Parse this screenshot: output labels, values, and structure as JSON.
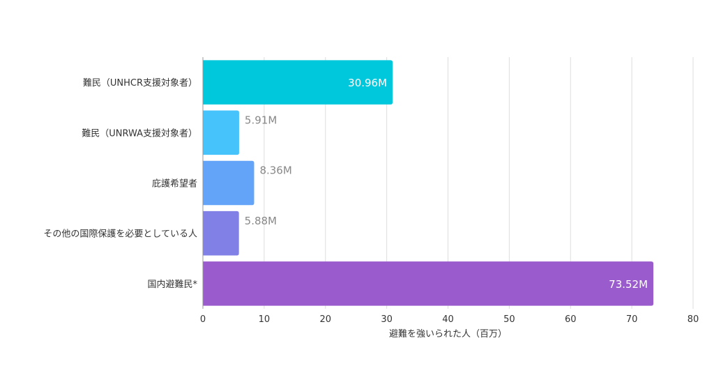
{
  "chart_data": {
    "type": "bar",
    "orientation": "horizontal",
    "categories": [
      "難民（UNHCR支援対象者）",
      "難民（UNRWA支援対象者）",
      "庇護希望者",
      "その他の国際保護を必要としている人",
      "国内避難民*"
    ],
    "values": [
      30.96,
      5.91,
      8.36,
      5.88,
      73.52
    ],
    "value_labels": [
      "30.96M",
      "5.91M",
      "8.36M",
      "5.88M",
      "73.52M"
    ],
    "colors": [
      "#00c8dc",
      "#47c3fb",
      "#64a4f8",
      "#8080e6",
      "#9a5bcd"
    ],
    "xlabel": "避難を強いられた人（百万）",
    "xlim": [
      0,
      80
    ],
    "xticks": [
      0,
      10,
      20,
      30,
      40,
      50,
      60,
      70,
      80
    ],
    "grid": true
  }
}
